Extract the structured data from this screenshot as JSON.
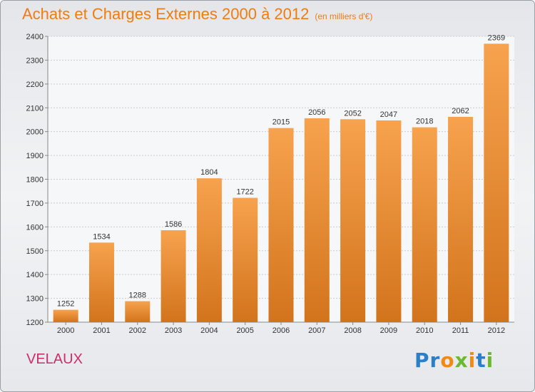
{
  "chart_data": {
    "type": "bar",
    "title": "Achats et Charges Externes 2000 à 2012",
    "subtitle": "(en milliers d'€)",
    "categories": [
      "2000",
      "2001",
      "2002",
      "2003",
      "2004",
      "2005",
      "2006",
      "2007",
      "2008",
      "2009",
      "2010",
      "2011",
      "2012"
    ],
    "values": [
      1252,
      1534,
      1288,
      1586,
      1804,
      1722,
      2015,
      2056,
      2052,
      2047,
      2018,
      2062,
      2369
    ],
    "ylim": [
      1200,
      2400
    ],
    "yticks": [
      1200,
      1300,
      1400,
      1500,
      1600,
      1700,
      1800,
      1900,
      2000,
      2100,
      2200,
      2300,
      2400
    ],
    "grid": true,
    "bar_color_top": "#f7a24e",
    "bar_color_bottom": "#d2741c"
  },
  "location": "VELAUX",
  "brand": {
    "name": "Proxiti",
    "letters": [
      {
        "ch": "P",
        "color": "#2a7fc9"
      },
      {
        "ch": "r",
        "color": "#2a7fc9"
      },
      {
        "ch": "o",
        "color": "#f08a12"
      },
      {
        "ch": "x",
        "color": "#6bb832"
      },
      {
        "ch": "i",
        "color": "#f08a12"
      },
      {
        "ch": "t",
        "color": "#2a7fc9"
      },
      {
        "ch": "i",
        "color": "#6bb832"
      }
    ]
  }
}
